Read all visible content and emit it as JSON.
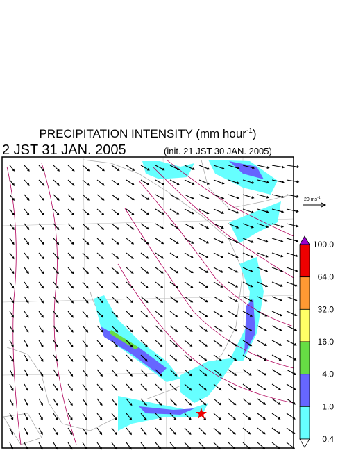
{
  "header": {
    "title": {
      "text": "PRECIPITATION INTENSITY (mm hour",
      "superscript": "-1",
      "close": ")"
    },
    "valid_time": "2 JST 31 JAN. 2005",
    "init_time": "(init. 21 JST 30 JAN. 2005)"
  },
  "vector_legend": {
    "label": "20 ms",
    "superscript": "-1"
  },
  "colorbar": {
    "labels": [
      "100.0",
      "64.0",
      "32.0",
      "16.0",
      "4.0",
      "1.0",
      "0.4"
    ],
    "colors": [
      "#9900cc",
      "#ee0000",
      "#ff9933",
      "#ffff66",
      "#66dd44",
      "#6666ff",
      "#66ffff",
      "#ffffff"
    ]
  }
}
